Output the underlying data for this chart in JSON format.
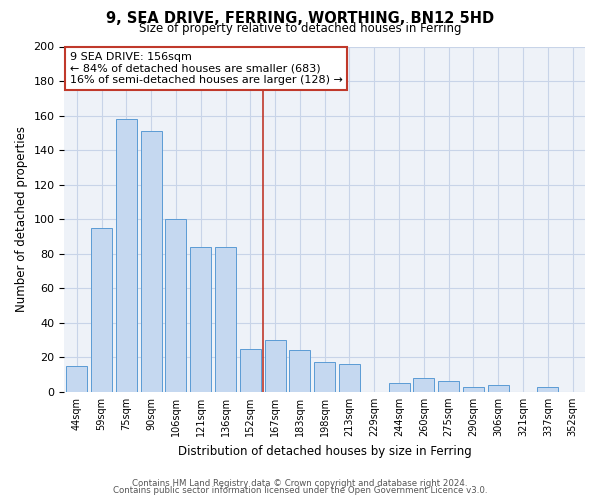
{
  "title": "9, SEA DRIVE, FERRING, WORTHING, BN12 5HD",
  "subtitle": "Size of property relative to detached houses in Ferring",
  "xlabel": "Distribution of detached houses by size in Ferring",
  "ylabel": "Number of detached properties",
  "categories": [
    "44sqm",
    "59sqm",
    "75sqm",
    "90sqm",
    "106sqm",
    "121sqm",
    "136sqm",
    "152sqm",
    "167sqm",
    "183sqm",
    "198sqm",
    "213sqm",
    "229sqm",
    "244sqm",
    "260sqm",
    "275sqm",
    "290sqm",
    "306sqm",
    "321sqm",
    "337sqm",
    "352sqm"
  ],
  "values": [
    15,
    95,
    158,
    151,
    100,
    84,
    84,
    25,
    30,
    24,
    17,
    16,
    0,
    5,
    8,
    6,
    3,
    4,
    0,
    3,
    0
  ],
  "bar_color": "#c5d8f0",
  "bar_edge_color": "#5b9bd5",
  "vline_x_index": 7.5,
  "vline_color": "#c0392b",
  "annotation_title": "9 SEA DRIVE: 156sqm",
  "annotation_line1": "← 84% of detached houses are smaller (683)",
  "annotation_line2": "16% of semi-detached houses are larger (128) →",
  "annotation_box_color": "#ffffff",
  "annotation_box_edge": "#c0392b",
  "ylim": [
    0,
    200
  ],
  "yticks": [
    0,
    20,
    40,
    60,
    80,
    100,
    120,
    140,
    160,
    180,
    200
  ],
  "footer1": "Contains HM Land Registry data © Crown copyright and database right 2024.",
  "footer2": "Contains public sector information licensed under the Open Government Licence v3.0.",
  "background_color": "#ffffff",
  "plot_bg_color": "#eef2f8",
  "grid_color": "#c8d4e8"
}
